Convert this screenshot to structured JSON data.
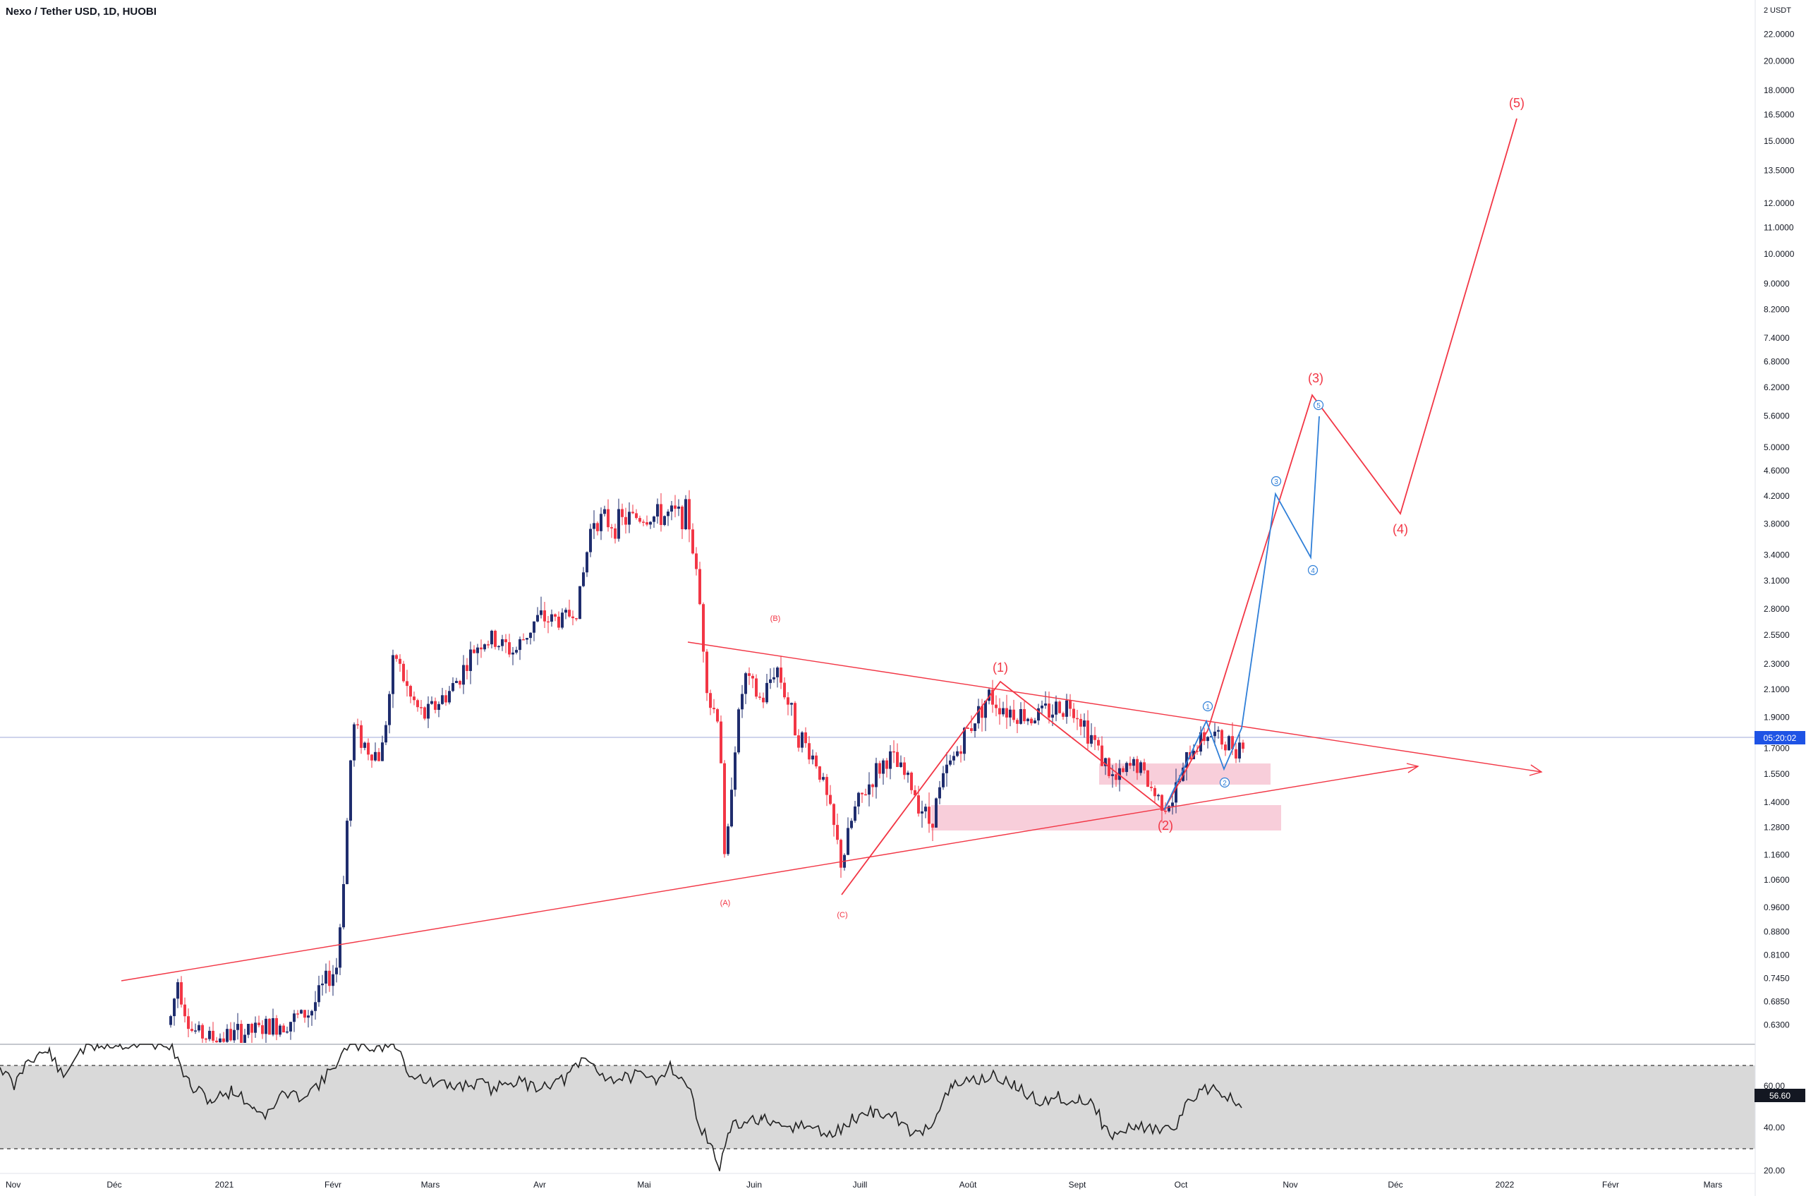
{
  "header": {
    "symbol_title": "Nexo / Tether USD, 1D, HUOBI"
  },
  "axis": {
    "currency": "USDT",
    "price_ticks": [
      "22.0000",
      "20.0000",
      "18.0000",
      "16.5000",
      "15.0000",
      "13.5000",
      "12.0000",
      "11.0000",
      "10.0000",
      "9.0000",
      "8.2000",
      "7.4000",
      "6.8000",
      "6.2000",
      "5.6000",
      "5.0000",
      "4.6000",
      "4.2000",
      "3.8000",
      "3.4000",
      "3.1000",
      "2.8000",
      "2.5500",
      "2.3000",
      "2.1000",
      "1.9000",
      "1.7000",
      "1.5500",
      "1.4000",
      "1.2800",
      "1.1600",
      "1.0600",
      "0.9600",
      "0.8800",
      "0.8100",
      "0.7450",
      "0.6850",
      "0.6300"
    ],
    "top_tick_prefix": "2",
    "last_price_label": "05:20:02",
    "last_price": 1.76,
    "rsi_ticks": [
      "60.00",
      "40.00",
      "20.00"
    ],
    "rsi_value_label": "56.60",
    "time_ticks": [
      "Nov",
      "Déc",
      "2021",
      "Févr",
      "Mars",
      "Avr",
      "Mai",
      "Juin",
      "Juill",
      "Août",
      "Sept",
      "Oct",
      "Nov",
      "Déc",
      "2022",
      "Févr",
      "Mars"
    ]
  },
  "wave_labels": {
    "A": "(A)",
    "B": "(B)",
    "C": "(C)",
    "w1": "(1)",
    "w2": "(2)",
    "w3": "(3)",
    "w4": "(4)",
    "w5": "(5)",
    "s1": "1",
    "s2": "2",
    "s3": "3",
    "s4": "4",
    "s5": "5"
  },
  "colors": {
    "up": "#1f2d6e",
    "down": "#f23645",
    "wave_red": "#f23645",
    "wave_blue": "#2f7fd8",
    "zone": "#f7c6d4",
    "rsi_band": "#d9d9d9",
    "price_line": "#9fa8da",
    "last_price_bg": "#1e53e5"
  },
  "chart_data": {
    "type": "candlestick",
    "title": "Nexo / Tether USD, 1D, HUOBI",
    "y_scale": "log",
    "ylim": [
      0.6,
      24
    ],
    "x_range": [
      "2020-11",
      "2022-03"
    ],
    "key_points": [
      {
        "date": "2021-01-28",
        "price": 0.78
      },
      {
        "date": "2021-02-05",
        "price": 1.85
      },
      {
        "date": "2021-04-20",
        "price": 3.85
      },
      {
        "date": "2021-05-20",
        "price": 4.1
      },
      {
        "date": "2021-05-23",
        "price": 1.03,
        "label": "(A)"
      },
      {
        "date": "2021-06-03",
        "price": 2.55,
        "label": "(B)"
      },
      {
        "date": "2021-06-27",
        "price": 1.0,
        "label": "(C)"
      },
      {
        "date": "2021-08-03",
        "price": 2.15,
        "label": "(1)"
      },
      {
        "date": "2021-09-25",
        "price": 1.35,
        "label": "(2)"
      },
      {
        "date": "2021-10-15",
        "price": 1.7
      }
    ],
    "projection": [
      {
        "label": "(3)",
        "price": 6.0
      },
      {
        "label": "(4)",
        "price": 4.0
      },
      {
        "label": "(5)",
        "price": 16.5
      }
    ],
    "rsi": {
      "last": 56.6,
      "levels": [
        30,
        70
      ]
    }
  }
}
